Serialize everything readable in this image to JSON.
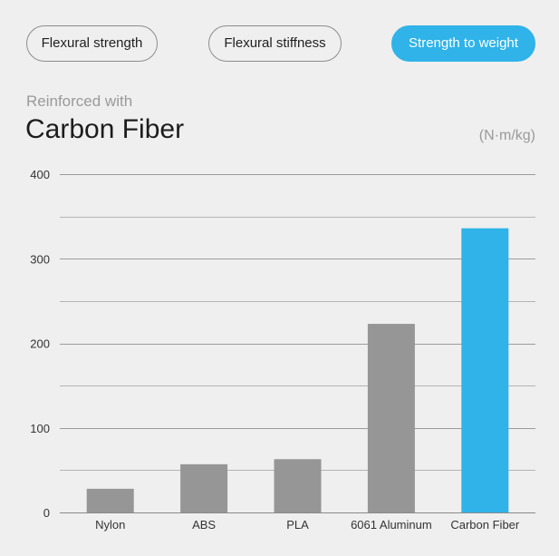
{
  "tabs": [
    {
      "label": "Flexural strength",
      "active": false
    },
    {
      "label": "Flexural stiffness",
      "active": false
    },
    {
      "label": "Strength to weight",
      "active": true
    }
  ],
  "header": {
    "subtitle": "Reinforced with",
    "title": "Carbon Fiber",
    "unit": "(N·m/kg)"
  },
  "colors": {
    "accent": "#2fb3e9",
    "bar": "#969696",
    "grid": "#a8a8a8",
    "background": "#efefef"
  },
  "chart_data": {
    "type": "bar",
    "title": "",
    "xlabel": "",
    "ylabel": "",
    "unit": "(N·m/kg)",
    "categories": [
      "Nylon",
      "ABS",
      "PLA",
      "6061 Aluminum",
      "Carbon Fiber"
    ],
    "values": [
      28,
      57,
      63,
      223,
      336
    ],
    "highlight": "Carbon Fiber",
    "ylim": [
      0,
      400
    ],
    "yticks": [
      0,
      100,
      200,
      300,
      400
    ],
    "grid": true,
    "legend": "none"
  }
}
